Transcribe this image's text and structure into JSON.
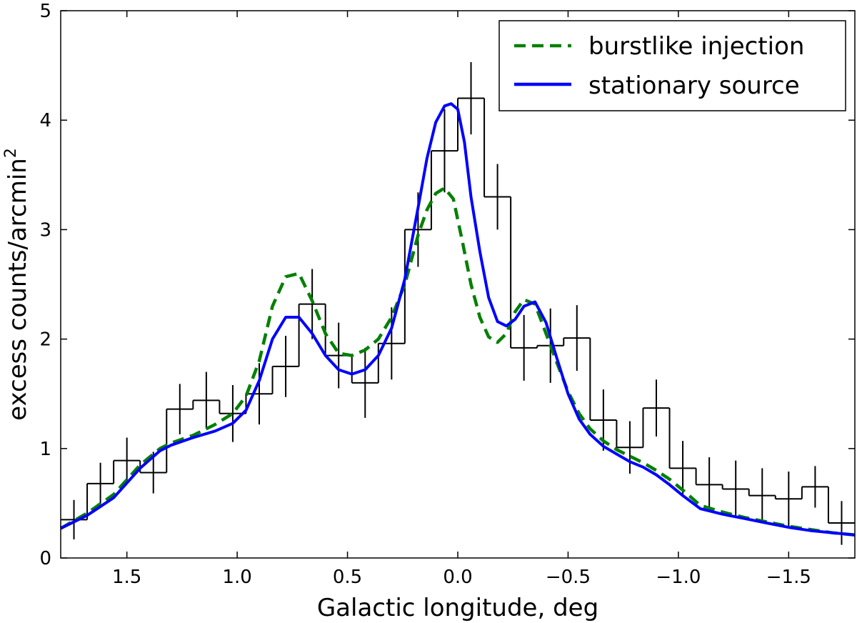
{
  "chart_data": {
    "type": "line",
    "xlabel": "Galactic longitude, deg",
    "ylabel_main": "excess counts/arcmin",
    "ylabel_sup": "2",
    "xlim": [
      1.8,
      -1.8
    ],
    "ylim": [
      0,
      5
    ],
    "x_ticks": [
      {
        "value": 1.5,
        "label": "1.5"
      },
      {
        "value": 1.0,
        "label": "1.0"
      },
      {
        "value": 0.5,
        "label": "0.5"
      },
      {
        "value": 0.0,
        "label": "0.0"
      },
      {
        "value": -0.5,
        "label": "−0.5"
      },
      {
        "value": -1.0,
        "label": "−1.0"
      },
      {
        "value": -1.5,
        "label": "−1.5"
      }
    ],
    "y_ticks": [
      {
        "value": 0,
        "label": "0"
      },
      {
        "value": 1,
        "label": "1"
      },
      {
        "value": 2,
        "label": "2"
      },
      {
        "value": 3,
        "label": "3"
      },
      {
        "value": 4,
        "label": "4"
      },
      {
        "value": 5,
        "label": "5"
      }
    ],
    "histogram": {
      "name": "data",
      "color": "#000000",
      "bin_edges": [
        1.8,
        1.68,
        1.56,
        1.44,
        1.32,
        1.2,
        1.08,
        0.96,
        0.84,
        0.72,
        0.6,
        0.48,
        0.36,
        0.24,
        0.12,
        0.0,
        -0.12,
        -0.24,
        -0.36,
        -0.48,
        -0.6,
        -0.72,
        -0.84,
        -0.96,
        -1.08,
        -1.2,
        -1.32,
        -1.44,
        -1.56,
        -1.68,
        -1.8
      ],
      "values": [
        0.35,
        0.68,
        0.89,
        0.78,
        1.36,
        1.44,
        1.32,
        1.5,
        1.75,
        2.32,
        1.85,
        1.6,
        1.96,
        3.0,
        3.72,
        4.2,
        3.3,
        1.92,
        1.94,
        2.01,
        1.26,
        1.01,
        1.37,
        0.82,
        0.67,
        0.63,
        0.57,
        0.54,
        0.65,
        0.32
      ],
      "errors": [
        0.18,
        0.19,
        0.21,
        0.19,
        0.23,
        0.26,
        0.26,
        0.28,
        0.28,
        0.32,
        0.3,
        0.32,
        0.33,
        0.34,
        0.38,
        0.33,
        0.3,
        0.3,
        0.34,
        0.3,
        0.28,
        0.24,
        0.26,
        0.25,
        0.25,
        0.26,
        0.25,
        0.25,
        0.19,
        0.2
      ]
    },
    "series": [
      {
        "name": "burstlike injection",
        "color": "#008000",
        "style": "dashed",
        "x": [
          1.8,
          1.68,
          1.56,
          1.44,
          1.35,
          1.3,
          1.2,
          1.1,
          1.02,
          0.96,
          0.9,
          0.84,
          0.78,
          0.72,
          0.66,
          0.6,
          0.54,
          0.48,
          0.42,
          0.36,
          0.3,
          0.24,
          0.18,
          0.14,
          0.1,
          0.06,
          0.02,
          -0.02,
          -0.06,
          -0.1,
          -0.14,
          -0.18,
          -0.22,
          -0.26,
          -0.3,
          -0.35,
          -0.4,
          -0.45,
          -0.5,
          -0.55,
          -0.6,
          -0.66,
          -0.72,
          -0.78,
          -0.84,
          -0.9,
          -0.96,
          -1.02,
          -1.1,
          -1.2,
          -1.3,
          -1.4,
          -1.5,
          -1.6,
          -1.7,
          -1.8
        ],
        "y": [
          0.27,
          0.41,
          0.58,
          0.85,
          1.0,
          1.05,
          1.12,
          1.22,
          1.32,
          1.48,
          1.8,
          2.3,
          2.57,
          2.6,
          2.35,
          2.05,
          1.87,
          1.85,
          1.9,
          2.0,
          2.2,
          2.5,
          2.95,
          3.18,
          3.33,
          3.38,
          3.28,
          2.9,
          2.5,
          2.2,
          2.02,
          1.97,
          2.05,
          2.25,
          2.36,
          2.32,
          2.05,
          1.78,
          1.52,
          1.32,
          1.18,
          1.07,
          0.99,
          0.93,
          0.87,
          0.8,
          0.72,
          0.62,
          0.48,
          0.42,
          0.37,
          0.33,
          0.29,
          0.26,
          0.23,
          0.21
        ]
      },
      {
        "name": "stationary source",
        "color": "#0000ff",
        "style": "solid",
        "x": [
          1.8,
          1.68,
          1.56,
          1.44,
          1.35,
          1.3,
          1.2,
          1.1,
          1.02,
          0.96,
          0.9,
          0.84,
          0.78,
          0.72,
          0.66,
          0.6,
          0.54,
          0.48,
          0.42,
          0.36,
          0.3,
          0.24,
          0.18,
          0.14,
          0.1,
          0.06,
          0.03,
          0.0,
          -0.03,
          -0.06,
          -0.1,
          -0.14,
          -0.18,
          -0.22,
          -0.26,
          -0.3,
          -0.35,
          -0.4,
          -0.45,
          -0.5,
          -0.55,
          -0.6,
          -0.66,
          -0.72,
          -0.78,
          -0.84,
          -0.9,
          -0.96,
          -1.02,
          -1.1,
          -1.2,
          -1.3,
          -1.4,
          -1.5,
          -1.6,
          -1.7,
          -1.8
        ],
        "y": [
          0.27,
          0.39,
          0.55,
          0.82,
          0.98,
          1.03,
          1.1,
          1.16,
          1.23,
          1.35,
          1.62,
          2.0,
          2.2,
          2.2,
          2.05,
          1.85,
          1.72,
          1.68,
          1.72,
          1.85,
          2.1,
          2.55,
          3.2,
          3.65,
          3.98,
          4.13,
          4.15,
          4.1,
          3.8,
          3.3,
          2.8,
          2.38,
          2.16,
          2.12,
          2.18,
          2.3,
          2.34,
          2.15,
          1.82,
          1.5,
          1.27,
          1.13,
          1.02,
          0.95,
          0.88,
          0.83,
          0.76,
          0.67,
          0.57,
          0.45,
          0.4,
          0.36,
          0.32,
          0.28,
          0.25,
          0.23,
          0.21
        ]
      }
    ],
    "legend": {
      "position": "top-right",
      "entries": [
        "burstlike injection",
        "stationary source"
      ]
    },
    "grid": false
  }
}
